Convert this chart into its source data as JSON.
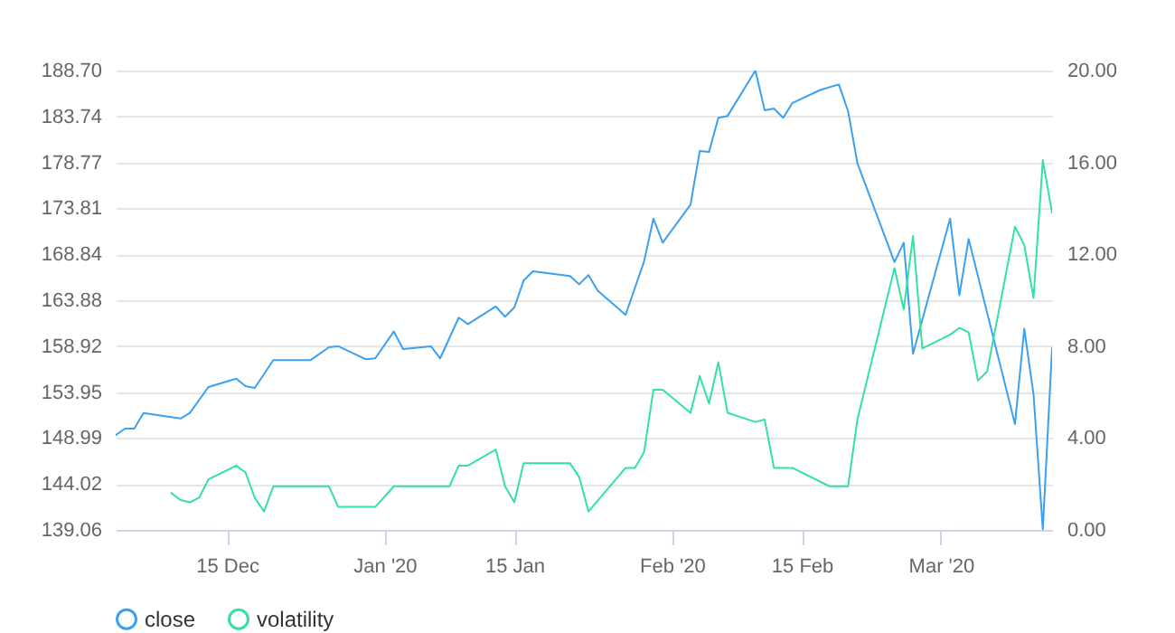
{
  "chart_data": {
    "type": "line",
    "legend": "bottom",
    "grid": "y",
    "marker": "none",
    "line_style": "solid",
    "xlim": [
      "2019-12-03",
      "2020-03-13"
    ],
    "xticks": [
      {
        "value": "2019-12-15",
        "label": "15 Dec"
      },
      {
        "value": "2020-01-01",
        "label": "Jan '20"
      },
      {
        "value": "2020-01-15",
        "label": "15 Jan"
      },
      {
        "value": "2020-02-01",
        "label": "Feb '20"
      },
      {
        "value": "2020-02-15",
        "label": "15 Feb"
      },
      {
        "value": "2020-03-01",
        "label": "Mar '20"
      }
    ],
    "ylim": [
      139.06,
      188.7
    ],
    "yticks": [
      139.06,
      144.02,
      148.99,
      153.95,
      158.92,
      163.88,
      168.84,
      173.81,
      178.77,
      183.74,
      {
        "value": 188.7,
        "label": "188.70"
      }
    ],
    "y2lim": [
      0,
      20
    ],
    "y2ticks": [
      {
        "value": 0,
        "label": "0.00"
      },
      {
        "value": 4,
        "label": "4.00"
      },
      {
        "value": 8,
        "label": "8.00"
      },
      {
        "value": 12,
        "label": "12.00"
      },
      {
        "value": 16,
        "label": "16.00"
      },
      {
        "value": 20,
        "label": "20.00"
      }
    ],
    "series": [
      {
        "name": "close",
        "color": "#3ba0f0",
        "x": [
          "2019-12-03",
          "2019-12-04",
          "2019-12-05",
          "2019-12-06",
          "2019-12-10",
          "2019-12-11",
          "2019-12-13",
          "2019-12-16",
          "2019-12-17",
          "2019-12-18",
          "2019-12-20",
          "2019-12-24",
          "2019-12-26",
          "2019-12-27",
          "2019-12-30",
          "2019-12-31",
          "2020-01-02",
          "2020-01-03",
          "2020-01-06",
          "2020-01-07",
          "2020-01-09",
          "2020-01-10",
          "2020-01-13",
          "2020-01-14",
          "2020-01-15",
          "2020-01-16",
          "2020-01-17",
          "2020-01-21",
          "2020-01-22",
          "2020-01-23",
          "2020-01-24",
          "2020-01-27",
          "2020-01-28",
          "2020-01-29",
          "2020-01-30",
          "2020-01-31",
          "2020-02-03",
          "2020-02-04",
          "2020-02-05",
          "2020-02-06",
          "2020-02-07",
          "2020-02-10",
          "2020-02-11",
          "2020-02-12",
          "2020-02-13",
          "2020-02-14",
          "2020-02-17",
          "2020-02-19",
          "2020-02-20",
          "2020-02-21",
          "2020-02-25",
          "2020-02-26",
          "2020-02-27",
          "2020-03-02",
          "2020-03-03",
          "2020-03-04",
          "2020-03-09",
          "2020-03-10",
          "2020-03-11",
          "2020-03-12",
          "2020-03-13"
        ],
        "values": [
          149.3,
          150.0,
          150.0,
          151.7,
          151.1,
          151.7,
          154.5,
          155.4,
          154.6,
          154.4,
          157.4,
          157.4,
          158.8,
          158.9,
          157.5,
          157.6,
          160.5,
          158.6,
          158.9,
          157.6,
          162.0,
          161.3,
          163.2,
          162.1,
          163.1,
          166.0,
          167.0,
          166.5,
          165.6,
          166.6,
          164.9,
          162.3,
          165.2,
          168.1,
          172.7,
          170.1,
          174.2,
          180.0,
          179.9,
          183.6,
          183.8,
          188.7,
          184.4,
          184.6,
          183.6,
          185.2,
          186.6,
          187.2,
          184.3,
          178.7,
          168.0,
          170.1,
          158.1,
          172.7,
          164.4,
          170.5,
          150.5,
          160.8,
          153.7,
          139.1,
          158.7
        ]
      },
      {
        "name": "volatility",
        "color": "#35e0a5",
        "axis": "y2",
        "x": [
          "2019-12-09",
          "2019-12-10",
          "2019-12-11",
          "2019-12-12",
          "2019-12-13",
          "2019-12-16",
          "2019-12-17",
          "2019-12-18",
          "2019-12-19",
          "2019-12-20",
          "2019-12-24",
          "2019-12-26",
          "2019-12-27",
          "2019-12-31",
          "2020-01-02",
          "2020-01-08",
          "2020-01-09",
          "2020-01-10",
          "2020-01-13",
          "2020-01-14",
          "2020-01-15",
          "2020-01-16",
          "2020-01-17",
          "2020-01-21",
          "2020-01-22",
          "2020-01-23",
          "2020-01-27",
          "2020-01-28",
          "2020-01-29",
          "2020-01-30",
          "2020-01-31",
          "2020-02-03",
          "2020-02-04",
          "2020-02-05",
          "2020-02-06",
          "2020-02-07",
          "2020-02-10",
          "2020-02-11",
          "2020-02-12",
          "2020-02-14",
          "2020-02-18",
          "2020-02-20",
          "2020-02-21",
          "2020-02-25",
          "2020-02-26",
          "2020-02-27",
          "2020-02-28",
          "2020-03-02",
          "2020-03-03",
          "2020-03-04",
          "2020-03-05",
          "2020-03-06",
          "2020-03-09",
          "2020-03-10",
          "2020-03-11",
          "2020-03-12",
          "2020-03-13"
        ],
        "values": [
          1.6,
          1.3,
          1.2,
          1.4,
          2.2,
          2.8,
          2.5,
          1.4,
          0.8,
          1.9,
          1.9,
          1.9,
          1.0,
          1.0,
          1.9,
          1.9,
          2.8,
          2.8,
          3.5,
          1.9,
          1.2,
          2.9,
          2.9,
          2.9,
          2.3,
          0.8,
          2.7,
          2.7,
          3.4,
          6.1,
          6.1,
          5.1,
          6.7,
          5.5,
          7.3,
          5.1,
          4.7,
          4.8,
          2.7,
          2.7,
          1.9,
          1.9,
          4.8,
          11.4,
          9.6,
          12.8,
          7.9,
          8.5,
          8.8,
          8.6,
          6.5,
          6.9,
          13.2,
          12.4,
          10.1,
          16.1,
          13.8
        ]
      }
    ]
  }
}
